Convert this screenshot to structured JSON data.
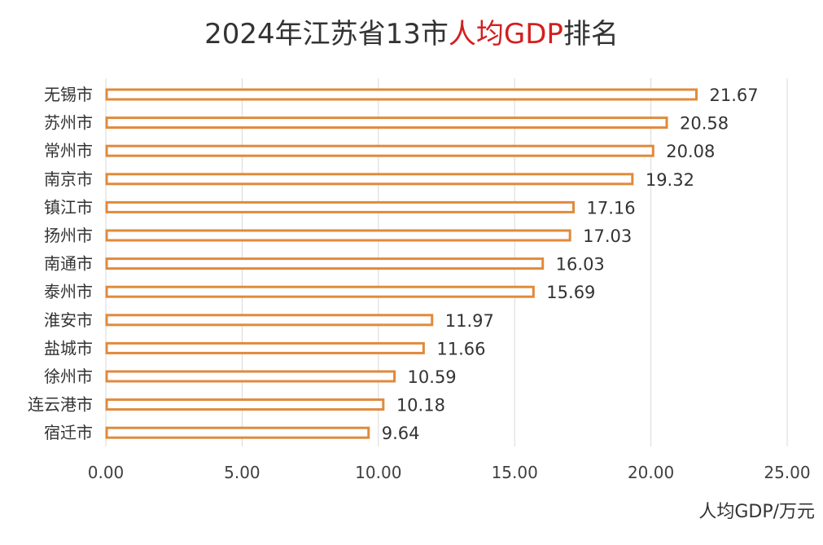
{
  "chart_data": {
    "type": "bar",
    "orientation": "horizontal",
    "title_parts": [
      {
        "text": "2024年江苏省13市",
        "accent": false
      },
      {
        "text": "人均GDP",
        "accent": true
      },
      {
        "text": "排名",
        "accent": false
      }
    ],
    "xlabel": "人均GDP/万元",
    "ylabel": "",
    "xlim": [
      0,
      25
    ],
    "xticks": [
      "0.00",
      "5.00",
      "10.00",
      "15.00",
      "20.00",
      "25.00"
    ],
    "grid": true,
    "categories": [
      "无锡市",
      "苏州市",
      "常州市",
      "南京市",
      "镇江市",
      "扬州市",
      "南通市",
      "泰州市",
      "淮安市",
      "盐城市",
      "徐州市",
      "连云港市",
      "宿迁市"
    ],
    "values": [
      21.67,
      20.58,
      20.08,
      19.32,
      17.16,
      17.03,
      16.03,
      15.69,
      11.97,
      11.66,
      10.59,
      10.18,
      9.64
    ],
    "value_labels": [
      "21.67",
      "20.58",
      "20.08",
      "19.32",
      "17.16",
      "17.03",
      "16.03",
      "15.69",
      "11.97",
      "11.66",
      "10.59",
      "10.18",
      "9.64"
    ],
    "colors": {
      "bar_outline": "#e08a3c",
      "bar_fill": "#ffffff",
      "grid": "#d9d9d9",
      "title_accent": "#d21f1f",
      "text": "#333333"
    }
  }
}
